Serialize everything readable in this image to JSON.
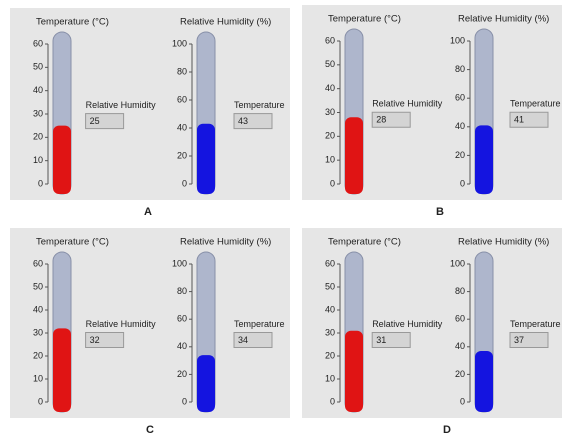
{
  "panels": [
    {
      "label": "A",
      "gauges": [
        {
          "title": "Temperature (°C)",
          "ticks": [
            0,
            10,
            20,
            30,
            40,
            50,
            60
          ],
          "color": "#e01414"
        },
        {
          "title": "Relative Humidity (%)",
          "ticks": [
            0,
            20,
            40,
            60,
            80,
            100
          ],
          "color": "#1414e0"
        }
      ],
      "indicators": [
        {
          "label": "Relative Humidity",
          "value": 25
        },
        {
          "label": "Temperature",
          "value": 43
        }
      ]
    },
    {
      "label": "B",
      "gauges": [
        {
          "title": "Temperature (°C)",
          "ticks": [
            0,
            10,
            20,
            30,
            40,
            50,
            60
          ],
          "color": "#e01414"
        },
        {
          "title": "Relative Humidity (%)",
          "ticks": [
            0,
            20,
            40,
            60,
            80,
            100
          ],
          "color": "#1414e0"
        }
      ],
      "indicators": [
        {
          "label": "Relative Humidity",
          "value": 28
        },
        {
          "label": "Temperature",
          "value": 41
        }
      ]
    },
    {
      "label": "C",
      "gauges": [
        {
          "title": "Temperature (°C)",
          "ticks": [
            0,
            10,
            20,
            30,
            40,
            50,
            60
          ],
          "color": "#e01414"
        },
        {
          "title": "Relative Humidity (%)",
          "ticks": [
            0,
            20,
            40,
            60,
            80,
            100
          ],
          "color": "#1414e0"
        }
      ],
      "indicators": [
        {
          "label": "Relative Humidity",
          "value": 32
        },
        {
          "label": "Temperature",
          "value": 34
        }
      ]
    },
    {
      "label": "D",
      "gauges": [
        {
          "title": "Temperature (°C)",
          "ticks": [
            0,
            10,
            20,
            30,
            40,
            50,
            60
          ],
          "color": "#e01414"
        },
        {
          "title": "Relative Humidity (%)",
          "ticks": [
            0,
            20,
            40,
            60,
            80,
            100
          ],
          "color": "#1414e0"
        }
      ],
      "indicators": [
        {
          "label": "Relative Humidity",
          "value": 31
        },
        {
          "label": "Temperature",
          "value": 37
        }
      ]
    }
  ]
}
